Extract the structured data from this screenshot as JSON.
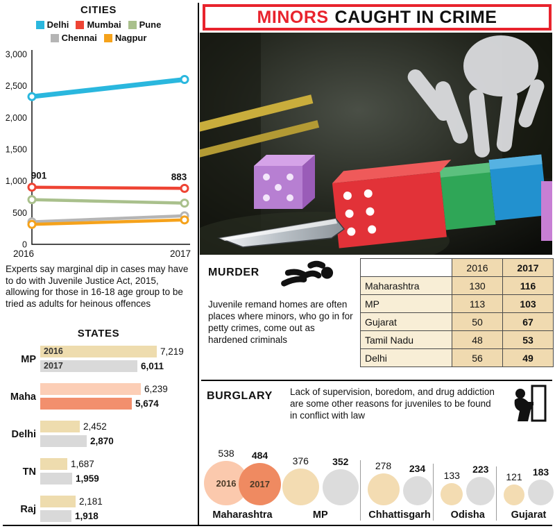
{
  "header": {
    "highlight": "MINORS",
    "rest": "CAUGHT IN CRIME"
  },
  "left_note": "Experts say marginal dip in cases may have to do with Juvenile Justice Act, 2015, allowing for those in 16-18 age group to be tried as adults for heinous offences",
  "murder": {
    "title": "MURDER",
    "note": "Juvenile remand homes are often places where minors, who go in for petty crimes, come out as hardened criminals"
  },
  "burglary": {
    "title": "BURGLARY",
    "note": "Lack of supervision, boredom, and drug addiction are some other reasons for juveniles to be found in conflict with law"
  },
  "colors": {
    "accent_red": "#e8232d",
    "tan": "#eedcae",
    "gray": "#d9d9d9"
  },
  "chart_data": [
    {
      "type": "line",
      "title": "CITIES",
      "x": [
        "2016",
        "2017"
      ],
      "ylim": [
        0,
        3000
      ],
      "yticks": [
        0,
        500,
        1000,
        1500,
        2000,
        2500,
        3000
      ],
      "ytick_labels": [
        "0",
        "500",
        "1,000",
        "1,500",
        "2,000",
        "2,500",
        "3,000"
      ],
      "legend_position": "top",
      "grid": false,
      "series": [
        {
          "name": "Delhi",
          "color": "#2ab7de",
          "values": [
            2330,
            2600
          ],
          "width": 7
        },
        {
          "name": "Mumbai",
          "color": "#ee4434",
          "values": [
            901,
            883
          ],
          "width": 4.5,
          "labels": [
            "901",
            "883"
          ]
        },
        {
          "name": "Pune",
          "color": "#a9c08c",
          "values": [
            705,
            650
          ],
          "width": 4.5
        },
        {
          "name": "Chennai",
          "color": "#b5b5b5",
          "values": [
            355,
            450
          ],
          "width": 4.5
        },
        {
          "name": "Nagpur",
          "color": "#f5a21b",
          "values": [
            315,
            385
          ],
          "width": 4.5
        }
      ]
    },
    {
      "type": "bar",
      "title": "STATES",
      "max": 7219,
      "rows": [
        {
          "label": "MP",
          "bars": [
            {
              "value": 7219,
              "display": "7,219",
              "color": "#eedcae",
              "tag": "2016"
            },
            {
              "value": 6011,
              "display": "6,011",
              "color": "#d9d9d9",
              "tag": "2017"
            }
          ]
        },
        {
          "label": "Maha",
          "bars": [
            {
              "value": 6239,
              "display": "6,239",
              "color": "#fcceb6",
              "tag": ""
            },
            {
              "value": 5674,
              "display": "5,674",
              "color": "#f28f6d",
              "tag": ""
            }
          ]
        },
        {
          "label": "Delhi",
          "bars": [
            {
              "value": 2452,
              "display": "2,452",
              "color": "#eedcae",
              "tag": ""
            },
            {
              "value": 2870,
              "display": "2,870",
              "color": "#d9d9d9",
              "tag": ""
            }
          ]
        },
        {
          "label": "TN",
          "bars": [
            {
              "value": 1687,
              "display": "1,687",
              "color": "#eedcae",
              "tag": ""
            },
            {
              "value": 1959,
              "display": "1,959",
              "color": "#d9d9d9",
              "tag": ""
            }
          ]
        },
        {
          "label": "Raj",
          "bars": [
            {
              "value": 2181,
              "display": "2,181",
              "color": "#eedcae",
              "tag": ""
            },
            {
              "value": 1918,
              "display": "1,918",
              "color": "#d9d9d9",
              "tag": ""
            }
          ]
        }
      ]
    },
    {
      "type": "table",
      "title": "MURDER",
      "columns": [
        "",
        "2016",
        "2017"
      ],
      "rows": [
        [
          "Maharashtra",
          "130",
          "116"
        ],
        [
          "MP",
          "113",
          "103"
        ],
        [
          "Gujarat",
          "50",
          "67"
        ],
        [
          "Tamil Nadu",
          "48",
          "53"
        ],
        [
          "Delhi",
          "56",
          "49"
        ]
      ]
    },
    {
      "type": "bubble",
      "title": "BURGLARY",
      "groups": [
        {
          "name": "Maharashtra",
          "circles": [
            {
              "year": "2016",
              "value": 538,
              "color": "#fbc9ad",
              "tag": "2016"
            },
            {
              "year": "2017",
              "value": 484,
              "color": "#ef8a61",
              "tag": "2017"
            }
          ]
        },
        {
          "name": "MP",
          "circles": [
            {
              "year": "2016",
              "value": 376,
              "color": "#f3dcb2",
              "tag": ""
            },
            {
              "year": "2017",
              "value": 352,
              "color": "#dcdcdc",
              "tag": ""
            }
          ]
        },
        {
          "name": "Chhattisgarh",
          "circles": [
            {
              "year": "2016",
              "value": 278,
              "color": "#f3dcb2",
              "tag": ""
            },
            {
              "year": "2017",
              "value": 234,
              "color": "#dcdcdc",
              "tag": ""
            }
          ]
        },
        {
          "name": "Odisha",
          "circles": [
            {
              "year": "2016",
              "value": 133,
              "color": "#f3dcb2",
              "tag": ""
            },
            {
              "year": "2017",
              "value": 223,
              "color": "#dcdcdc",
              "tag": ""
            }
          ]
        },
        {
          "name": "Gujarat",
          "circles": [
            {
              "year": "2016",
              "value": 121,
              "color": "#f3dcb2",
              "tag": ""
            },
            {
              "year": "2017",
              "value": 183,
              "color": "#dcdcdc",
              "tag": ""
            }
          ]
        }
      ]
    }
  ]
}
